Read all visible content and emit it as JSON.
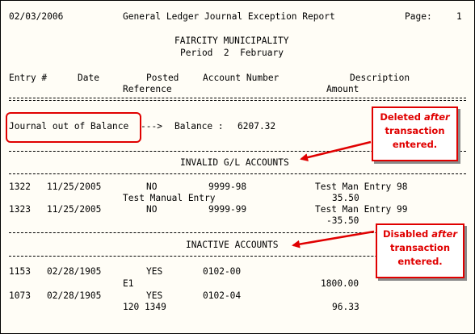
{
  "header": {
    "date": "02/03/2006",
    "title": "General Ledger Journal Exception Report",
    "page_label": "Page:",
    "page_number": "1",
    "organization": "FAIRCITY MUNICIPALITY",
    "period": "Period  2  February"
  },
  "columns": {
    "entry": "Entry #",
    "date": "Date",
    "posted": "Posted",
    "account": "Account Number",
    "description": "Description",
    "reference": "Reference",
    "amount": "Amount"
  },
  "balance": {
    "label": "Journal out of Balance",
    "arrow": "--->",
    "balance_label": "Balance :",
    "value": "6207.32"
  },
  "invalid_section": {
    "title": "INVALID G/L ACCOUNTS",
    "rows": [
      {
        "entry": "1322",
        "date": "11/25/2005",
        "posted": "NO",
        "account": "9999-98",
        "description": "Test Man Entry 98",
        "reference": "Test Manual Entry",
        "amount": "35.50"
      },
      {
        "entry": "1323",
        "date": "11/25/2005",
        "posted": "NO",
        "account": "9999-99",
        "description": "Test Man Entry 99",
        "reference": "",
        "amount": "-35.50"
      }
    ]
  },
  "inactive_section": {
    "title": "INACTIVE ACCOUNTS",
    "rows": [
      {
        "entry": "1153",
        "date": "02/28/1905",
        "posted": "YES",
        "account": "0102-00",
        "description": "",
        "reference": "E1",
        "amount": "1800.00"
      },
      {
        "entry": "1073",
        "date": "02/28/1905",
        "posted": "YES",
        "account": "0102-04",
        "description": "",
        "reference": "120 1349",
        "amount": "96.33"
      }
    ]
  },
  "callouts": {
    "deleted": {
      "pre": "Deleted ",
      "em": "after",
      "line2": "transaction",
      "line3": "entered."
    },
    "disabled": {
      "pre": "Disabled ",
      "em": "after",
      "line2": "transaction",
      "line3": "entered."
    }
  },
  "colors": {
    "accent_red": "#e00000",
    "background": "#fffdf6"
  }
}
